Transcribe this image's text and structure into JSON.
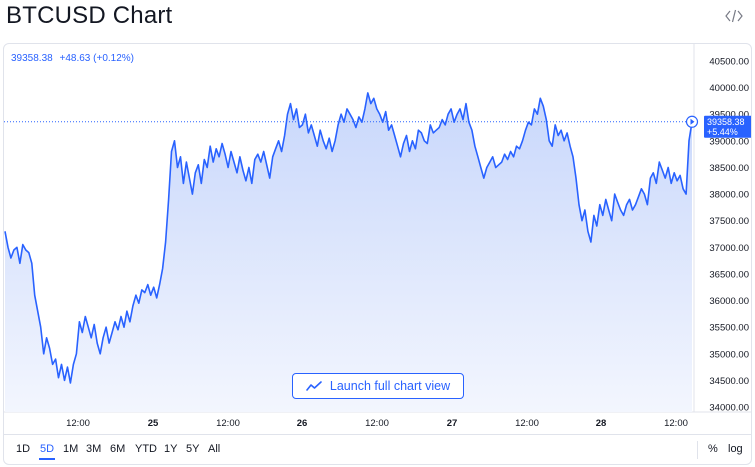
{
  "header": {
    "title": "BTCUSD Chart",
    "embed_icon": "code-icon"
  },
  "legend": {
    "price": "39358.38",
    "change": "+48.63 (+0.12%)"
  },
  "price_tag": {
    "price": "39358.38",
    "change": "+5.44%"
  },
  "launch_button": {
    "label": "Launch full chart view",
    "icon": "trend-line-icon"
  },
  "time_ranges": [
    "1D",
    "5D",
    "1M",
    "3M",
    "6M",
    "YTD",
    "1Y",
    "5Y",
    "All"
  ],
  "active_range": "5D",
  "scale_options": {
    "percent": "%",
    "log": "log"
  },
  "colors": {
    "accent": "#2962ff",
    "line": "#2962ff",
    "area_top": "#c8d7fb",
    "area_bottom": "#f3f6fe"
  },
  "chart_data": {
    "type": "area",
    "y_ticks": [
      "40500.00",
      "40000.00",
      "39500.00",
      "39000.00",
      "38500.00",
      "38000.00",
      "37500.00",
      "37000.00",
      "36500.00",
      "36000.00",
      "35500.00",
      "35000.00",
      "34500.00",
      "34000.00"
    ],
    "x_ticks": [
      "12:00",
      "25",
      "12:00",
      "26",
      "12:00",
      "27",
      "12:00",
      "28",
      "12:00"
    ],
    "ylim": [
      34000,
      40500
    ],
    "last_price": 39358.38,
    "series": [
      {
        "values": [
          37300,
          37000,
          36800,
          36950,
          37000,
          36700,
          37050,
          36950,
          36900,
          36700,
          36100,
          35800,
          35500,
          35000,
          35300,
          35100,
          34800,
          34900,
          34550,
          34800,
          34500,
          34750,
          34450,
          34800,
          35000,
          35600,
          35400,
          35700,
          35500,
          35300,
          35550,
          35200,
          35000,
          35300,
          35500,
          35200,
          35400,
          35600,
          35450,
          35700,
          35500,
          35800,
          35600,
          35900,
          36100,
          35950,
          36200,
          36150,
          36300,
          36100,
          36250,
          36050,
          36300,
          36600,
          37100,
          37900,
          38800,
          39000,
          38500,
          38700,
          38200,
          38600,
          38300,
          38000,
          38400,
          38550,
          38200,
          38650,
          38500,
          38900,
          38600,
          38850,
          38700,
          38950,
          38750,
          38500,
          38800,
          38600,
          38400,
          38700,
          38450,
          38250,
          38500,
          38200,
          38650,
          38750,
          38600,
          38800,
          38550,
          38300,
          38700,
          38850,
          39000,
          38800,
          39100,
          39500,
          39700,
          39400,
          39600,
          39250,
          39300,
          39500,
          39150,
          39300,
          39100,
          38900,
          39200,
          39000,
          38850,
          39050,
          38800,
          39000,
          39300,
          39500,
          39350,
          39600,
          39500,
          39400,
          39250,
          39450,
          39350,
          39600,
          39900,
          39700,
          39800,
          39600,
          39500,
          39350,
          39550,
          39200,
          39300,
          39100,
          38900,
          38700,
          38950,
          39100,
          38800,
          39000,
          38850,
          39200,
          39150,
          39000,
          38950,
          39300,
          39150,
          39200,
          39250,
          39400,
          39300,
          39500,
          39600,
          39350,
          39500,
          39600,
          39400,
          39700,
          39350,
          39200,
          38900,
          38700,
          38500,
          38300,
          38500,
          38600,
          38700,
          38500,
          38550,
          38600,
          38750,
          38650,
          38800,
          38700,
          38900,
          38850,
          39000,
          39200,
          39350,
          39300,
          39600,
          39500,
          39800,
          39650,
          39400,
          39000,
          38900,
          39300,
          39100,
          39200,
          39000,
          39150,
          38900,
          38700,
          38300,
          37800,
          37500,
          37700,
          37300,
          37100,
          37600,
          37400,
          37800,
          37600,
          37900,
          37700,
          37500,
          38000,
          37850,
          37700,
          37600,
          37800,
          37900,
          37700,
          37800,
          37950,
          38100,
          38000,
          37800,
          38300,
          38400,
          38200,
          38600,
          38450,
          38300,
          38500,
          38200,
          38400,
          38250,
          38350,
          38100,
          38000,
          39000,
          39358.38
        ]
      }
    ]
  }
}
